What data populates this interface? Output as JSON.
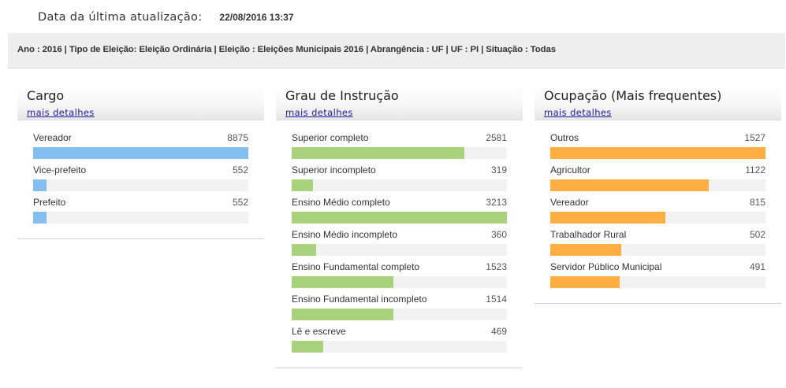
{
  "update": {
    "label": "Data da última atualização:",
    "value": "22/08/2016 13:37"
  },
  "filter_text": "Ano : 2016 | Tipo de Eleição: Eleição Ordinária | Eleição : Eleições Municipais 2016 | Abrangência : UF | UF : PI | Situação : Todas",
  "panels": {
    "cargo": {
      "title": "Cargo",
      "link": "mais detalhes"
    },
    "grau": {
      "title": "Grau de Instrução",
      "link": "mais detalhes"
    },
    "ocupacao": {
      "title": "Ocupação (Mais frequentes)",
      "link": "mais detalhes"
    }
  },
  "colors": {
    "cargo": "#85bff2",
    "grau": "#a8d27c",
    "ocupacao": "#ffaf42"
  },
  "chart_data": [
    {
      "type": "bar",
      "title": "Cargo",
      "categories": [
        "Vereador",
        "Vice-prefeito",
        "Prefeito"
      ],
      "values": [
        8875,
        552,
        552
      ],
      "value_labels": [
        "8875",
        "552",
        "552"
      ]
    },
    {
      "type": "bar",
      "title": "Grau de Instrução",
      "categories": [
        "Superior completo",
        "Superior incompleto",
        "Ensino Médio completo",
        "Ensino Médio incompleto",
        "Ensino Fundamental completo",
        "Ensino Fundamental incompleto",
        "Lê e escreve"
      ],
      "values": [
        2581,
        319,
        3213,
        360,
        1523,
        1514,
        469
      ],
      "value_labels": [
        "2581",
        "319",
        "3213",
        "360",
        "1523",
        "1514",
        "469"
      ]
    },
    {
      "type": "bar",
      "title": "Ocupação (Mais frequentes)",
      "categories": [
        "Outros",
        "Agricultor",
        "Vereador",
        "Trabalhador Rural",
        "Servidor Público Municipal"
      ],
      "values": [
        1527,
        1122,
        815,
        502,
        491
      ],
      "value_labels": [
        "1527",
        "1122",
        "815",
        "502",
        "491"
      ]
    }
  ]
}
